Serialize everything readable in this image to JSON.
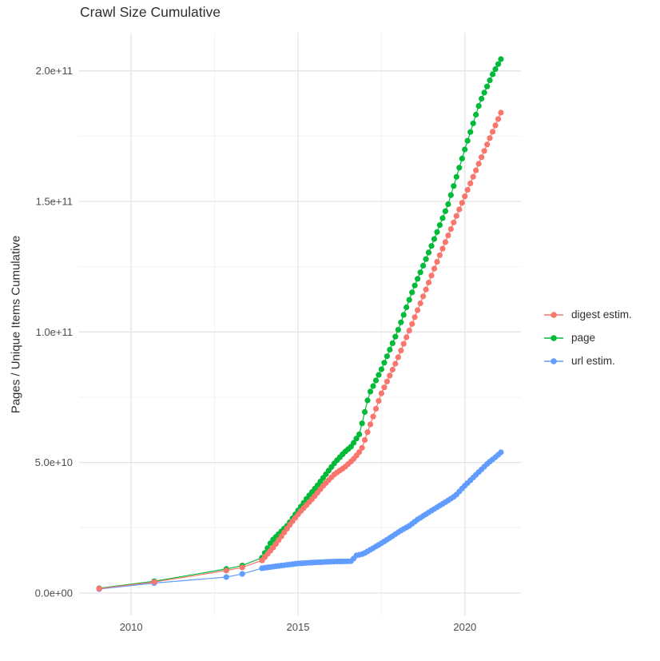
{
  "title": "Crawl Size Cumulative",
  "colors": {
    "background": "#ffffff",
    "grid_major": "#e4e4e4",
    "grid_minor": "#f1f1f1",
    "tick_label": "#4d4d4d",
    "text": "#2f2f2f"
  },
  "legend": {
    "items": [
      {
        "label": "digest estim.",
        "color": "#F8766D"
      },
      {
        "label": "page",
        "color": "#00BA38"
      },
      {
        "label": "url estim.",
        "color": "#619CFF"
      }
    ]
  },
  "chart_data": {
    "type": "scatter",
    "title": "Crawl Size Cumulative",
    "xlabel": "",
    "ylabel": "Pages / Unique Items Cumulative",
    "xlim": [
      2008.44,
      2021.68
    ],
    "ylim": [
      -8600000000.0,
      214600000000.0
    ],
    "x_ticks": [
      2010,
      2015,
      2020
    ],
    "x_tick_labels": [
      "2010",
      "2015",
      "2020"
    ],
    "x_minor_ticks": [
      2012.5,
      2017.5
    ],
    "y_ticks": [
      0,
      50000000000.0,
      100000000000.0,
      150000000000.0,
      200000000000.0
    ],
    "y_tick_labels": [
      "0.0e+00",
      "5.0e+10",
      "1.0e+11",
      "1.5e+11",
      "2.0e+11"
    ],
    "y_minor_ticks": [
      25000000000.0,
      75000000000.0,
      125000000000.0,
      175000000000.0
    ],
    "grid": true,
    "legend_position": "right",
    "dense_from": 2013.92,
    "sample_step_years": 0.08333,
    "point_radius": 3.6,
    "draw_order": [
      2,
      1,
      0
    ],
    "series": [
      {
        "name": "digest estim.",
        "color": "#F8766D",
        "anchors": [
          [
            2009.04,
            1700000000.0
          ],
          [
            2010.69,
            4200000000.0
          ],
          [
            2012.85,
            8600000000.0
          ],
          [
            2013.33,
            9800000000.0
          ],
          [
            2013.92,
            12500000000.0
          ],
          [
            2014.28,
            17800000000.0
          ],
          [
            2014.78,
            26600000000.0
          ],
          [
            2015.07,
            31200000000.0
          ],
          [
            2015.43,
            36100000000.0
          ],
          [
            2015.77,
            41300000000.0
          ],
          [
            2016.1,
            45600000000.0
          ],
          [
            2016.39,
            48100000000.0
          ],
          [
            2016.65,
            51100000000.0
          ],
          [
            2016.9,
            55000000000.0
          ],
          [
            2017.49,
            76200000000.0
          ],
          [
            2017.92,
            87900000000.0
          ],
          [
            2018.44,
            103800000000.0
          ],
          [
            2018.94,
            119700000000.0
          ],
          [
            2019.13,
            125800000000.0
          ],
          [
            2019.5,
            137000000000.0
          ],
          [
            2020.0,
            152000000000.0
          ],
          [
            2020.5,
            167000000000.0
          ],
          [
            2021.08,
            184000000000.0
          ]
        ]
      },
      {
        "name": "page",
        "color": "#00BA38",
        "anchors": [
          [
            2009.04,
            1800000000.0
          ],
          [
            2010.69,
            4500000000.0
          ],
          [
            2012.85,
            9200000000.0
          ],
          [
            2013.33,
            10500000000.0
          ],
          [
            2013.92,
            13500000000.0
          ],
          [
            2014.21,
            19900000000.0
          ],
          [
            2014.69,
            26000000000.0
          ],
          [
            2014.98,
            31200000000.0
          ],
          [
            2015.29,
            36700000000.0
          ],
          [
            2015.57,
            41000000000.0
          ],
          [
            2015.84,
            45600000000.0
          ],
          [
            2016.12,
            50200000000.0
          ],
          [
            2016.39,
            53900000000.0
          ],
          [
            2016.6,
            56200000000.0
          ],
          [
            2016.84,
            60900000000.0
          ],
          [
            2017.13,
            76200000000.0
          ],
          [
            2017.49,
            85400000000.0
          ],
          [
            2017.97,
            99800000000.0
          ],
          [
            2018.44,
            116000000000.0
          ],
          [
            2019.0,
            133000000000.0
          ],
          [
            2019.5,
            149000000000.0
          ],
          [
            2020.0,
            170000000000.0
          ],
          [
            2020.45,
            188000000000.0
          ],
          [
            2020.84,
            199000000000.0
          ],
          [
            2021.08,
            204500000000.0
          ]
        ]
      },
      {
        "name": "url estim.",
        "color": "#619CFF",
        "anchors": [
          [
            2009.04,
            1500000000.0
          ],
          [
            2010.69,
            3800000000.0
          ],
          [
            2012.85,
            6100000000.0
          ],
          [
            2013.33,
            7300000000.0
          ],
          [
            2013.92,
            9500000000.0
          ],
          [
            2014.5,
            10500000000.0
          ],
          [
            2015.0,
            11300000000.0
          ],
          [
            2015.5,
            11700000000.0
          ],
          [
            2016.0,
            12000000000.0
          ],
          [
            2016.6,
            12200000000.0
          ],
          [
            2016.75,
            14400000000.0
          ],
          [
            2016.96,
            15000000000.0
          ],
          [
            2017.2,
            16800000000.0
          ],
          [
            2017.49,
            19000000000.0
          ],
          [
            2017.75,
            21100000000.0
          ],
          [
            2018.04,
            23600000000.0
          ],
          [
            2018.33,
            25700000000.0
          ],
          [
            2018.59,
            28200000000.0
          ],
          [
            2018.88,
            30600000000.0
          ],
          [
            2019.16,
            32800000000.0
          ],
          [
            2019.43,
            34900000000.0
          ],
          [
            2019.72,
            37300000000.0
          ],
          [
            2019.95,
            40500000000.0
          ],
          [
            2020.31,
            45000000000.0
          ],
          [
            2020.67,
            49500000000.0
          ],
          [
            2020.96,
            52500000000.0
          ],
          [
            2021.08,
            53900000000.0
          ]
        ]
      }
    ]
  }
}
